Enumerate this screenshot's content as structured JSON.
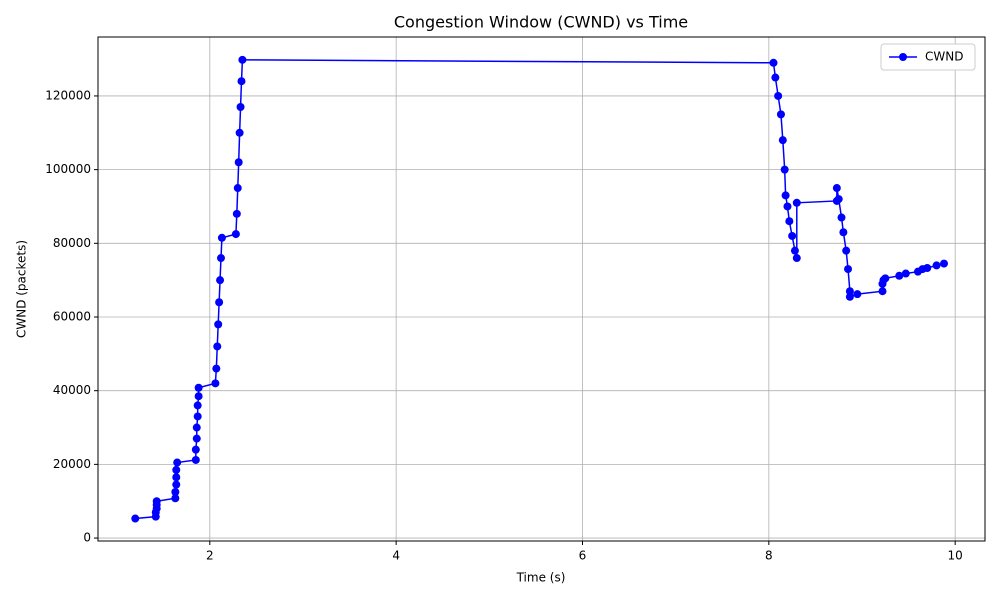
{
  "chart_data": {
    "type": "line",
    "title": "Congestion Window (CWND) vs Time",
    "x_label": "Time (s)",
    "y_label": "CWND (packets)",
    "x": [
      1.2,
      1.42,
      1.42,
      1.43,
      1.43,
      1.43,
      1.63,
      1.63,
      1.64,
      1.64,
      1.64,
      1.65,
      1.85,
      1.85,
      1.86,
      1.86,
      1.87,
      1.87,
      1.88,
      1.88,
      2.06,
      2.07,
      2.08,
      2.09,
      2.1,
      2.11,
      2.12,
      2.13,
      2.28,
      2.29,
      2.3,
      2.31,
      2.32,
      2.33,
      2.34,
      2.35,
      8.05,
      8.07,
      8.1,
      8.13,
      8.15,
      8.17,
      8.18,
      8.2,
      8.22,
      8.25,
      8.28,
      8.3,
      8.3,
      8.73,
      8.73,
      8.75,
      8.78,
      8.8,
      8.83,
      8.85,
      8.87,
      8.87,
      8.95,
      9.22,
      9.22,
      9.23,
      9.25,
      9.4,
      9.47,
      9.6,
      9.65,
      9.7,
      9.8,
      9.88
    ],
    "series": [
      {
        "name": "CWND",
        "color": "#0000ff",
        "values": [
          5300,
          5800,
          7000,
          8000,
          9000,
          10000,
          10800,
          12500,
          14500,
          16500,
          18500,
          20500,
          21200,
          24000,
          27000,
          30000,
          33000,
          36000,
          38500,
          40800,
          42000,
          46000,
          52000,
          58000,
          64000,
          70000,
          76000,
          81500,
          82500,
          88000,
          95000,
          102000,
          110000,
          117000,
          124000,
          129800,
          129000,
          125000,
          120000,
          115000,
          108000,
          100000,
          93000,
          90000,
          86000,
          82000,
          78000,
          76000,
          91000,
          91500,
          95000,
          92000,
          87000,
          83000,
          78000,
          73000,
          67000,
          65500,
          66200,
          67000,
          69000,
          70000,
          70500,
          71200,
          71800,
          72300,
          73000,
          73300,
          74000,
          74500
        ]
      }
    ],
    "xlim": [
      0.8,
      10.32
    ],
    "ylim": [
      -800,
      136000
    ],
    "xticks": [
      2,
      4,
      6,
      8,
      10
    ],
    "yticks": [
      0,
      20000,
      40000,
      60000,
      80000,
      100000,
      120000
    ],
    "grid": true,
    "legend": "upper right"
  }
}
